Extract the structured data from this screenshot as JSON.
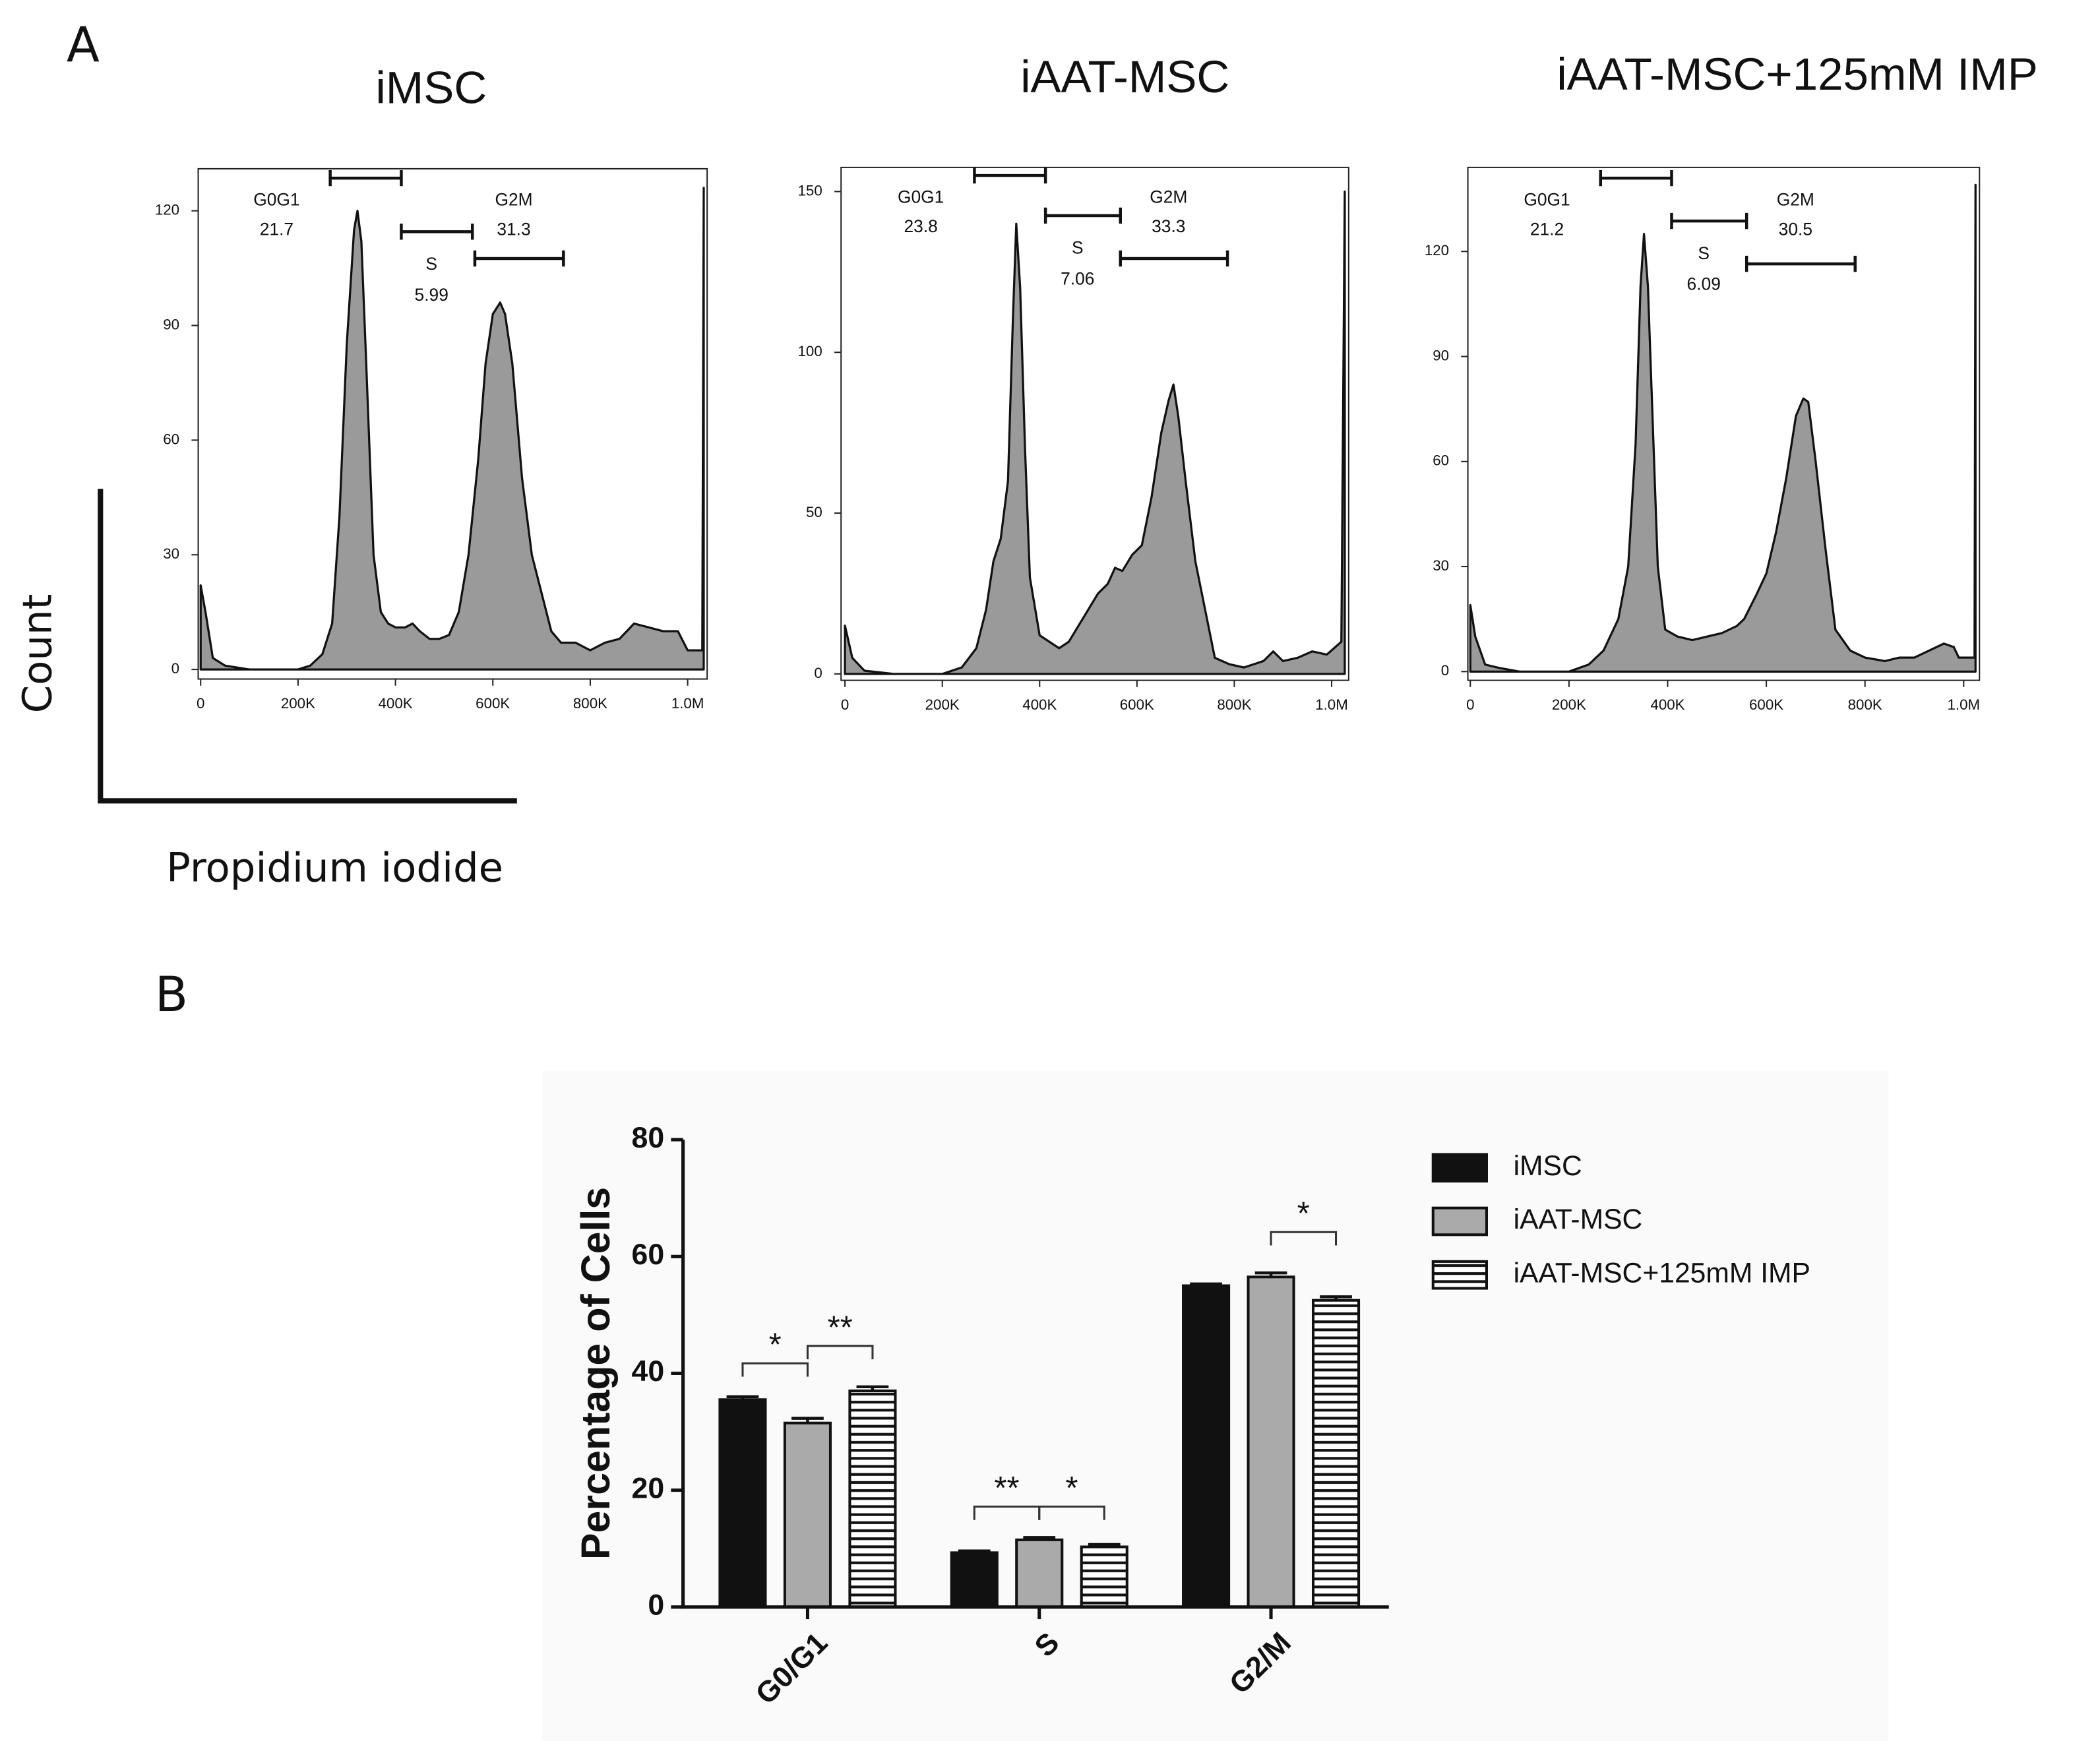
{
  "panels": [
    "A",
    "B"
  ],
  "axis_key": {
    "y": "Count",
    "x": "Propidium iodide"
  },
  "chart_data": [
    {
      "type": "area",
      "title": "iMSC",
      "color": "#9a9a9a",
      "x": [
        0,
        10000,
        25000,
        50000,
        100000,
        150000,
        200000,
        225000,
        250000,
        270000,
        285000,
        300000,
        315000,
        322000,
        330000,
        340000,
        355000,
        370000,
        385000,
        400000,
        420000,
        435000,
        450000,
        470000,
        490000,
        510000,
        530000,
        550000,
        570000,
        585000,
        600000,
        615000,
        625000,
        640000,
        660000,
        680000,
        700000,
        720000,
        740000,
        770000,
        800000,
        830000,
        860000,
        890000,
        920000,
        950000,
        980000,
        1000000,
        1030000,
        1033000
      ],
      "values": [
        22,
        15,
        3,
        1,
        0,
        0,
        0,
        1,
        4,
        12,
        40,
        85,
        115,
        120,
        112,
        80,
        30,
        15,
        12,
        11,
        11,
        12,
        10,
        8,
        8,
        9,
        15,
        30,
        55,
        80,
        93,
        96,
        93,
        80,
        50,
        30,
        20,
        10,
        7,
        7,
        5,
        7,
        8,
        12,
        11,
        10,
        10,
        5,
        5,
        126
      ],
      "xlim": [
        -5000,
        1040000
      ],
      "xticks": [
        0,
        {
          "value": 200000,
          "label": "200K"
        },
        {
          "value": 400000,
          "label": "400K"
        },
        {
          "value": 600000,
          "label": "600K"
        },
        {
          "value": 800000,
          "label": "800K"
        },
        {
          "value": 1000000,
          "label": "1.0M"
        }
      ],
      "ylim": [
        -2.5,
        131
      ],
      "yticks": [
        0,
        30,
        60,
        90,
        120
      ],
      "gates": [
        {
          "name": "G0G1",
          "value": 21.7,
          "range": [
            266000,
            412000
          ]
        },
        {
          "name": "S",
          "value": 5.99,
          "range": [
            412000,
            558000
          ]
        },
        {
          "name": "G2M",
          "value": 31.3,
          "range": [
            563000,
            745000
          ]
        }
      ]
    },
    {
      "type": "area",
      "title": "iAAT-MSC",
      "color": "#9a9a9a",
      "x": [
        0,
        15000,
        40000,
        100000,
        200000,
        240000,
        270000,
        290000,
        305000,
        320000,
        335000,
        345000,
        352000,
        360000,
        370000,
        380000,
        400000,
        420000,
        440000,
        460000,
        480000,
        500000,
        520000,
        540000,
        555000,
        570000,
        590000,
        610000,
        630000,
        650000,
        665000,
        675000,
        685000,
        700000,
        720000,
        740000,
        760000,
        790000,
        820000,
        860000,
        880000,
        900000,
        930000,
        960000,
        990000,
        1020000,
        1027000
      ],
      "values": [
        15,
        5,
        1,
        0,
        0,
        2,
        8,
        20,
        35,
        42,
        60,
        110,
        140,
        120,
        70,
        30,
        12,
        10,
        8,
        10,
        15,
        20,
        25,
        28,
        33,
        32,
        37,
        40,
        55,
        75,
        85,
        90,
        80,
        60,
        35,
        20,
        5,
        3,
        2,
        4,
        7,
        4,
        5,
        7,
        6,
        10,
        150
      ],
      "xlim": [
        -8000,
        1035000
      ],
      "xticks": [
        0,
        {
          "value": 200000,
          "label": "200K"
        },
        {
          "value": 400000,
          "label": "400K"
        },
        {
          "value": 600000,
          "label": "600K"
        },
        {
          "value": 800000,
          "label": "800K"
        },
        {
          "value": 1000000,
          "label": "1.0M"
        }
      ],
      "ylim": [
        -2,
        157.5
      ],
      "yticks": [
        0,
        50,
        100,
        150
      ],
      "gates": [
        {
          "name": "G0G1",
          "value": 23.8,
          "range": [
            266000,
            412000
          ]
        },
        {
          "name": "S",
          "value": 7.06,
          "range": [
            412000,
            566000
          ]
        },
        {
          "name": "G2M",
          "value": 33.3,
          "range": [
            566000,
            786000
          ]
        }
      ]
    },
    {
      "type": "area",
      "title": "iAAT-MSC+125mM IMP",
      "color": "#9a9a9a",
      "x": [
        0,
        10000,
        30000,
        60000,
        100000,
        200000,
        240000,
        270000,
        300000,
        320000,
        335000,
        345000,
        352000,
        360000,
        370000,
        380000,
        395000,
        420000,
        450000,
        480000,
        510000,
        540000,
        555000,
        580000,
        600000,
        620000,
        640000,
        660000,
        675000,
        685000,
        700000,
        720000,
        740000,
        770000,
        800000,
        840000,
        870000,
        900000,
        930000,
        960000,
        980000,
        990000,
        1022000,
        1024000
      ],
      "values": [
        19,
        10,
        2,
        1,
        0,
        0,
        2,
        6,
        15,
        30,
        65,
        110,
        125,
        110,
        70,
        30,
        12,
        10,
        9,
        10,
        11,
        13,
        15,
        22,
        28,
        40,
        55,
        73,
        78,
        77,
        60,
        35,
        12,
        6,
        4,
        3,
        4,
        4,
        6,
        8,
        7,
        4,
        4,
        139
      ],
      "xlim": [
        -5000,
        1032000
      ],
      "xticks": [
        0,
        {
          "value": 200000,
          "label": "200K"
        },
        {
          "value": 400000,
          "label": "400K"
        },
        {
          "value": 600000,
          "label": "600K"
        },
        {
          "value": 800000,
          "label": "800K"
        },
        {
          "value": 1000000,
          "label": "1.0M"
        }
      ],
      "ylim": [
        -2.5,
        144
      ],
      "yticks": [
        0,
        30,
        60,
        90,
        120
      ],
      "gates": [
        {
          "name": "G0G1",
          "value": 21.2,
          "range": [
            264000,
            408000
          ]
        },
        {
          "name": "S",
          "value": 6.09,
          "range": [
            408000,
            560000
          ]
        },
        {
          "name": "G2M",
          "value": 30.5,
          "range": [
            560000,
            780000
          ]
        }
      ]
    },
    {
      "type": "bar",
      "y_label": "Percentage of Cells",
      "categories": [
        "G0/G1",
        "S",
        "G2/M"
      ],
      "series": [
        {
          "name": "iMSC",
          "color": "#111111",
          "values": [
            35.5,
            9.3,
            55
          ],
          "errors": [
            0.5,
            0.3,
            0.3
          ]
        },
        {
          "name": "iAAT-MSC",
          "color": "#aaaaaa",
          "values": [
            31.5,
            11.5,
            56.5
          ],
          "errors": [
            0.8,
            0.4,
            0.7
          ]
        },
        {
          "name": "iAAT-MSC+125mM IMP",
          "color": "#ffffff",
          "hatch": "horizontal",
          "values": [
            37,
            10.3,
            52.5
          ],
          "errors": [
            0.7,
            0.4,
            0.6
          ]
        }
      ],
      "ylim": [
        0,
        80
      ],
      "yticks": [
        0,
        20,
        40,
        60,
        80
      ],
      "annotations": [
        "*",
        "**",
        "**",
        "*",
        "*"
      ]
    }
  ]
}
